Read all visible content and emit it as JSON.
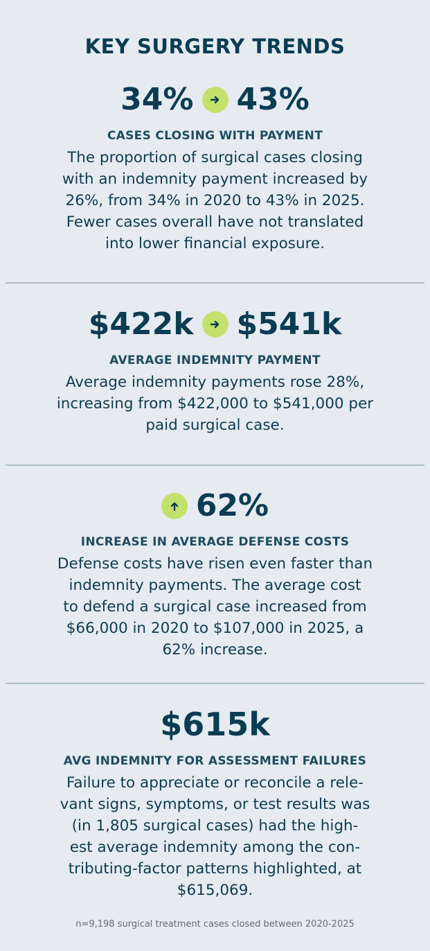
{
  "title": "KEY SURGERY TRENDS",
  "sections": [
    {
      "stat_from": "34%",
      "icon": "arrow-right-icon",
      "stat_to": "43%",
      "heading": "CASES CLOSING WITH PAYMENT",
      "lines": [
        "The proportion of surgical cases closing",
        "with an indemnity payment increased by",
        "26%, from 34% in 2020 to 43% in 2025.",
        "Fewer cases overall have not translated",
        "into lower financial exposure."
      ]
    },
    {
      "stat_from": "$422k",
      "icon": "arrow-right-icon",
      "stat_to": "$541k",
      "heading": "AVERAGE INDEMNITY PAYMENT",
      "lines": [
        "Average indemnity payments rose 28%,",
        "increasing from $422,000 to $541,000 per",
        "paid surgical case."
      ]
    },
    {
      "icon": "arrow-up-icon",
      "stat": "62%",
      "heading": "INCREASE IN AVERAGE DEFENSE COSTS",
      "lines": [
        "Defense costs have risen even faster than",
        "indemnity payments. The average cost",
        "to defend a surgical case increased from",
        "$66,000 in 2020 to $107,000 in 2025, a",
        "62% increase."
      ]
    },
    {
      "stat": "$615k",
      "heading": "AVG INDEMNITY FOR ASSESSMENT FAILURES",
      "lines": [
        "Failure to appreciate or reconcile a rele-",
        "vant signs, symptoms, or test results was",
        "(in 1,805 surgical cases) had the high-",
        "est average indemnity among the con-",
        "tributing-factor patterns highlighted, at",
        "$615,069."
      ]
    }
  ],
  "footnote": "n=9,198 surgical treatment cases closed between 2020-2025",
  "colors": {
    "background": "#e6ebf1",
    "text": "#0b3d52",
    "accent": "#c3e26b",
    "divider": "#a9bcc6"
  }
}
